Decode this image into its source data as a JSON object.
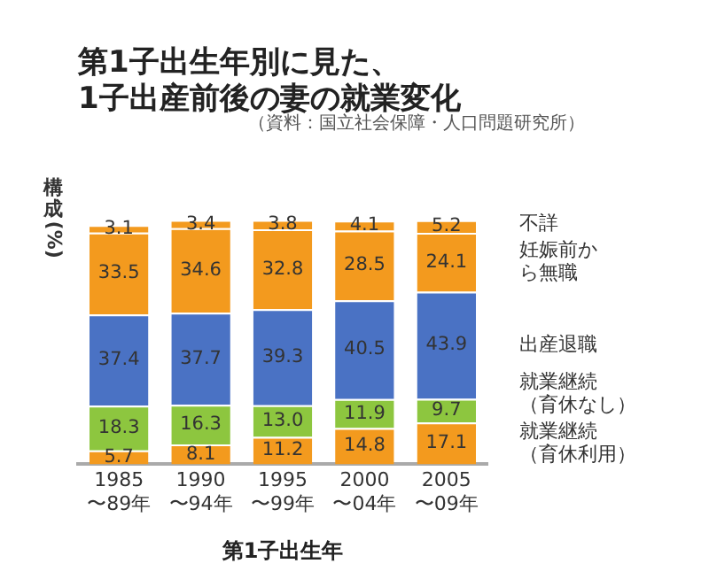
{
  "chart_data": {
    "type": "bar",
    "stacked": true,
    "title": "第1子出生年別に見た、1子出産前後の妻の就業変化",
    "annotations": [
      "（資料：国立社会保障・人口問題研究所）"
    ],
    "xlabel": "第1子出生年",
    "ylabel": "構成(%)",
    "categories": [
      "1985\n〜89年",
      "1990\n〜94年",
      "1995\n〜99年",
      "2000\n〜04年",
      "2005\n〜09年"
    ],
    "tick_labels": "x",
    "grid": false,
    "legend": false,
    "series": [
      {
        "name": "就業継続（育休利用）",
        "color": "#f39a1e",
        "values": [
          5.7,
          8.1,
          11.2,
          14.8,
          17.1
        ],
        "value_labels": [
          "5.7",
          "8.1",
          "11.2",
          "14.8",
          "17.1"
        ]
      },
      {
        "name": "就業継続（育休なし）",
        "color": "#8dc63f",
        "values": [
          18.3,
          16.3,
          13.0,
          11.9,
          9.7
        ],
        "value_labels": [
          "18.3",
          "16.3",
          "13.0",
          "11.9",
          "9.7"
        ]
      },
      {
        "name": "出産退職",
        "color": "#4a72c4",
        "values": [
          37.4,
          37.7,
          39.3,
          40.5,
          43.9
        ],
        "value_labels": [
          "37.4",
          "37.7",
          "39.3",
          "40.5",
          "43.9"
        ]
      },
      {
        "name": "妊娠前から無職",
        "color": "#f39a1e",
        "values": [
          33.5,
          34.6,
          32.8,
          28.5,
          24.1
        ],
        "value_labels": [
          "33.5",
          "34.6",
          "32.8",
          "28.5",
          "24.1"
        ]
      },
      {
        "name": "不詳",
        "color": "#f39a1e",
        "values": [
          3.1,
          3.4,
          3.8,
          4.1,
          5.2
        ],
        "value_labels": [
          "3.1",
          "3.4",
          "3.8",
          "4.1",
          "5.2"
        ]
      }
    ]
  }
}
